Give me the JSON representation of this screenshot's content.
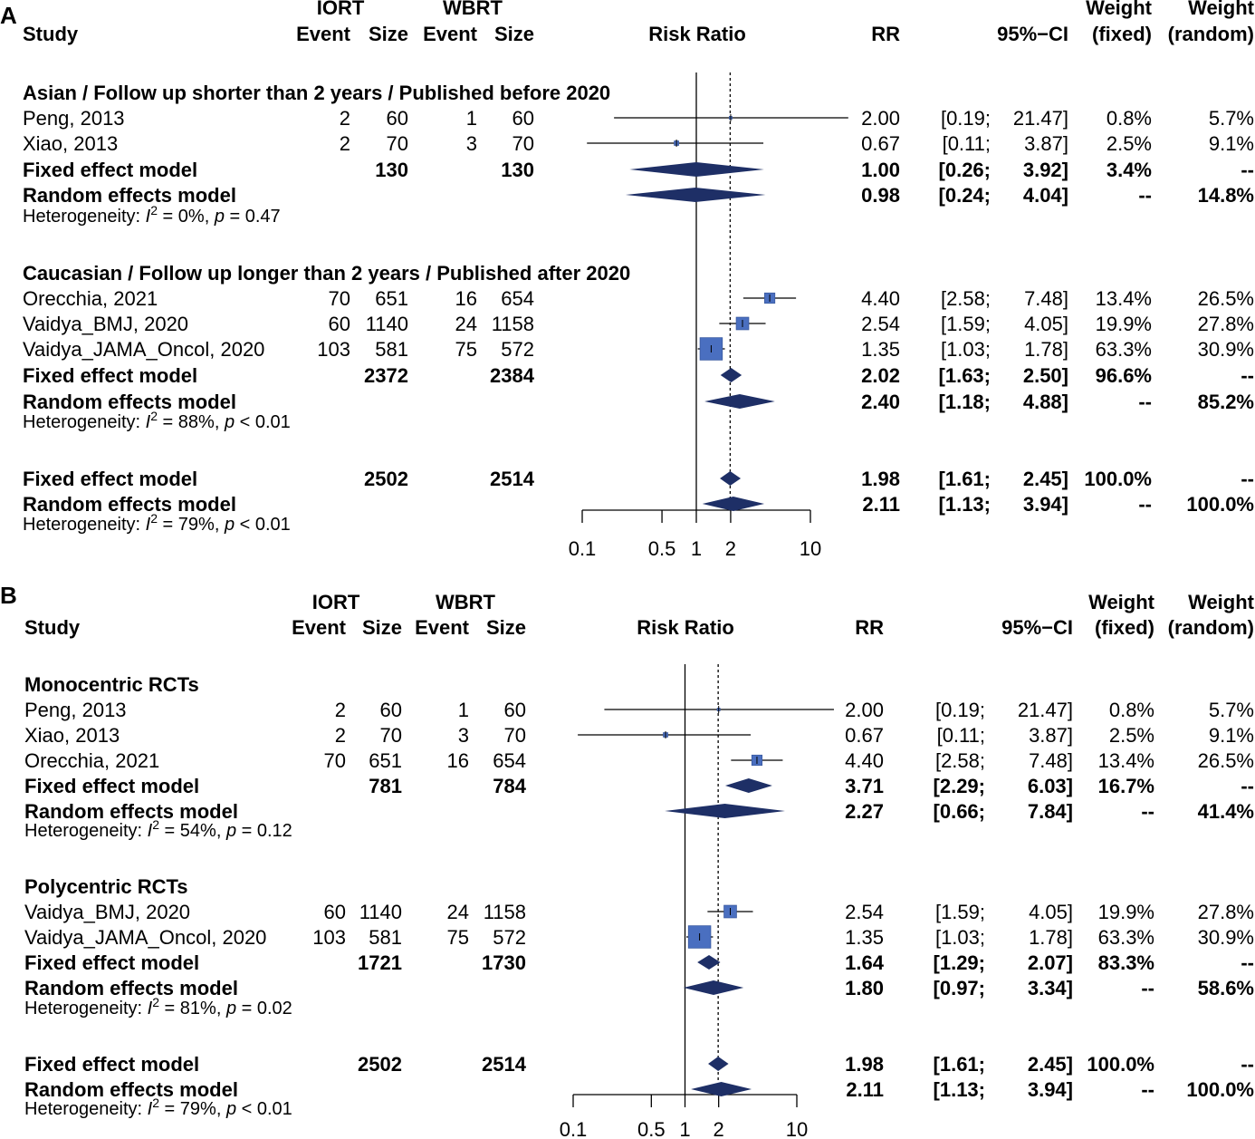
{
  "colors": {
    "square": "#4a6fc0",
    "square_stroke": "#3a5aa0",
    "diamond": "#1e2f66",
    "line": "#000000"
  },
  "chart_data": [
    {
      "type": "forest",
      "panel": "A",
      "headers": {
        "study": "Study",
        "iort": "IORT",
        "wbrt": "WBRT",
        "event": "Event",
        "size": "Size",
        "risk_ratio": "Risk Ratio",
        "rr": "RR",
        "ci": "95%−CI",
        "weight_fixed_1": "Weight",
        "weight_fixed_2": "(fixed)",
        "weight_random_1": "Weight",
        "weight_random_2": "(random)"
      },
      "axis": {
        "scale": "log",
        "ticks": [
          0.1,
          0.5,
          1,
          2,
          10
        ],
        "tick_labels": [
          "0.1",
          "0.5",
          "1",
          "2",
          "10"
        ],
        "xlim": [
          0.1,
          10
        ],
        "reference_line": 1,
        "summary_line": 1.98
      },
      "groups": [
        {
          "title": "Asian / Follow up shorter than 2 years / Published before 2020",
          "studies": [
            {
              "name": "Peng, 2013",
              "e1": "2",
              "n1": "60",
              "e2": "1",
              "n2": "60",
              "rr": 2.0,
              "lo": 0.19,
              "hi": 21.47,
              "rr_text": "2.00",
              "ci_lo": "[0.19;",
              "ci_hi": "21.47]",
              "wf": "0.8%",
              "wr": "5.7%",
              "w": 0.8
            },
            {
              "name": "Xiao, 2013",
              "e1": "2",
              "n1": "70",
              "e2": "3",
              "n2": "70",
              "rr": 0.67,
              "lo": 0.11,
              "hi": 3.87,
              "rr_text": "0.67",
              "ci_lo": "[0.11;",
              "ci_hi": "3.87]",
              "wf": "2.5%",
              "wr": "9.1%",
              "w": 2.5
            }
          ],
          "fixed": {
            "label": "Fixed effect model",
            "n1": "130",
            "n2": "130",
            "rr": 1.0,
            "lo": 0.26,
            "hi": 3.92,
            "rr_text": "1.00",
            "ci_lo": "[0.26;",
            "ci_hi": "3.92]",
            "wf": "3.4%",
            "wr": "--"
          },
          "random": {
            "label": "Random effects model",
            "rr": 0.98,
            "lo": 0.24,
            "hi": 4.04,
            "rr_text": "0.98",
            "ci_lo": "[0.24;",
            "ci_hi": "4.04]",
            "wf": "--",
            "wr": "14.8%"
          },
          "heterogeneity": {
            "prefix": "Heterogeneity: ",
            "i2": "I",
            "sup": "2",
            "value": " = 0%, ",
            "p": "p",
            "pval": " = 0.47"
          }
        },
        {
          "title": "Caucasian / Follow up longer than 2 years / Published after 2020",
          "studies": [
            {
              "name": "Orecchia, 2021",
              "e1": "70",
              "n1": "651",
              "e2": "16",
              "n2": "654",
              "rr": 4.4,
              "lo": 2.58,
              "hi": 7.48,
              "rr_text": "4.40",
              "ci_lo": "[2.58;",
              "ci_hi": "7.48]",
              "wf": "13.4%",
              "wr": "26.5%",
              "w": 13.4
            },
            {
              "name": "Vaidya_BMJ, 2020",
              "e1": "60",
              "n1": "1140",
              "e2": "24",
              "n2": "1158",
              "rr": 2.54,
              "lo": 1.59,
              "hi": 4.05,
              "rr_text": "2.54",
              "ci_lo": "[1.59;",
              "ci_hi": "4.05]",
              "wf": "19.9%",
              "wr": "27.8%",
              "w": 19.9
            },
            {
              "name": "Vaidya_JAMA_Oncol, 2020",
              "e1": "103",
              "n1": "581",
              "e2": "75",
              "n2": "572",
              "rr": 1.35,
              "lo": 1.03,
              "hi": 1.78,
              "rr_text": "1.35",
              "ci_lo": "[1.03;",
              "ci_hi": "1.78]",
              "wf": "63.3%",
              "wr": "30.9%",
              "w": 63.3
            }
          ],
          "fixed": {
            "label": "Fixed effect model",
            "n1": "2372",
            "n2": "2384",
            "rr": 2.02,
            "lo": 1.63,
            "hi": 2.5,
            "rr_text": "2.02",
            "ci_lo": "[1.63;",
            "ci_hi": "2.50]",
            "wf": "96.6%",
            "wr": "--"
          },
          "random": {
            "label": "Random effects model",
            "rr": 2.4,
            "lo": 1.18,
            "hi": 4.88,
            "rr_text": "2.40",
            "ci_lo": "[1.18;",
            "ci_hi": "4.88]",
            "wf": "--",
            "wr": "85.2%"
          },
          "heterogeneity": {
            "prefix": "Heterogeneity: ",
            "i2": "I",
            "sup": "2",
            "value": " = 88%, ",
            "p": "p",
            "pval": " < 0.01"
          }
        }
      ],
      "overall": {
        "fixed": {
          "label": "Fixed effect model",
          "n1": "2502",
          "n2": "2514",
          "rr": 1.98,
          "lo": 1.61,
          "hi": 2.45,
          "rr_text": "1.98",
          "ci_lo": "[1.61;",
          "ci_hi": "2.45]",
          "wf": "100.0%",
          "wr": "--"
        },
        "random": {
          "label": "Random effects model",
          "rr": 2.11,
          "lo": 1.13,
          "hi": 3.94,
          "rr_text": "2.11",
          "ci_lo": "[1.13;",
          "ci_hi": "3.94]",
          "wf": "--",
          "wr": "100.0%"
        },
        "heterogeneity": {
          "prefix": "Heterogeneity: ",
          "i2": "I",
          "sup": "2",
          "value": " = 79%, ",
          "p": "p",
          "pval": " < 0.01"
        }
      }
    },
    {
      "type": "forest",
      "panel": "B",
      "headers": {
        "study": "Study",
        "iort": "IORT",
        "wbrt": "WBRT",
        "event": "Event",
        "size": "Size",
        "risk_ratio": "Risk Ratio",
        "rr": "RR",
        "ci": "95%−CI",
        "weight_fixed_1": "Weight",
        "weight_fixed_2": "(fixed)",
        "weight_random_1": "Weight",
        "weight_random_2": "(random)"
      },
      "axis": {
        "scale": "log",
        "ticks": [
          0.1,
          0.5,
          1,
          2,
          10
        ],
        "tick_labels": [
          "0.1",
          "0.5",
          "1",
          "2",
          "10"
        ],
        "xlim": [
          0.1,
          10
        ],
        "reference_line": 1,
        "summary_line": 1.98
      },
      "groups": [
        {
          "title": "Monocentric RCTs",
          "studies": [
            {
              "name": "Peng, 2013",
              "e1": "2",
              "n1": "60",
              "e2": "1",
              "n2": "60",
              "rr": 2.0,
              "lo": 0.19,
              "hi": 21.47,
              "rr_text": "2.00",
              "ci_lo": "[0.19;",
              "ci_hi": "21.47]",
              "wf": "0.8%",
              "wr": "5.7%",
              "w": 0.8
            },
            {
              "name": "Xiao, 2013",
              "e1": "2",
              "n1": "70",
              "e2": "3",
              "n2": "70",
              "rr": 0.67,
              "lo": 0.11,
              "hi": 3.87,
              "rr_text": "0.67",
              "ci_lo": "[0.11;",
              "ci_hi": "3.87]",
              "wf": "2.5%",
              "wr": "9.1%",
              "w": 2.5
            },
            {
              "name": "Orecchia, 2021",
              "e1": "70",
              "n1": "651",
              "e2": "16",
              "n2": "654",
              "rr": 4.4,
              "lo": 2.58,
              "hi": 7.48,
              "rr_text": "4.40",
              "ci_lo": "[2.58;",
              "ci_hi": "7.48]",
              "wf": "13.4%",
              "wr": "26.5%",
              "w": 13.4
            }
          ],
          "fixed": {
            "label": "Fixed effect model",
            "n1": "781",
            "n2": "784",
            "rr": 3.71,
            "lo": 2.29,
            "hi": 6.03,
            "rr_text": "3.71",
            "ci_lo": "[2.29;",
            "ci_hi": "6.03]",
            "wf": "16.7%",
            "wr": "--"
          },
          "random": {
            "label": "Random effects model",
            "rr": 2.27,
            "lo": 0.66,
            "hi": 7.84,
            "rr_text": "2.27",
            "ci_lo": "[0.66;",
            "ci_hi": "7.84]",
            "wf": "--",
            "wr": "41.4%"
          },
          "heterogeneity": {
            "prefix": "Heterogeneity: ",
            "i2": "I",
            "sup": "2",
            "value": " = 54%, ",
            "p": "p",
            "pval": " = 0.12"
          }
        },
        {
          "title": "Polycentric RCTs",
          "studies": [
            {
              "name": "Vaidya_BMJ, 2020",
              "e1": "60",
              "n1": "1140",
              "e2": "24",
              "n2": "1158",
              "rr": 2.54,
              "lo": 1.59,
              "hi": 4.05,
              "rr_text": "2.54",
              "ci_lo": "[1.59;",
              "ci_hi": "4.05]",
              "wf": "19.9%",
              "wr": "27.8%",
              "w": 19.9
            },
            {
              "name": "Vaidya_JAMA_Oncol, 2020",
              "e1": "103",
              "n1": "581",
              "e2": "75",
              "n2": "572",
              "rr": 1.35,
              "lo": 1.03,
              "hi": 1.78,
              "rr_text": "1.35",
              "ci_lo": "[1.03;",
              "ci_hi": "1.78]",
              "wf": "63.3%",
              "wr": "30.9%",
              "w": 63.3
            }
          ],
          "fixed": {
            "label": "Fixed effect model",
            "n1": "1721",
            "n2": "1730",
            "rr": 1.64,
            "lo": 1.29,
            "hi": 2.07,
            "rr_text": "1.64",
            "ci_lo": "[1.29;",
            "ci_hi": "2.07]",
            "wf": "83.3%",
            "wr": "--"
          },
          "random": {
            "label": "Random effects model",
            "rr": 1.8,
            "lo": 0.97,
            "hi": 3.34,
            "rr_text": "1.80",
            "ci_lo": "[0.97;",
            "ci_hi": "3.34]",
            "wf": "--",
            "wr": "58.6%"
          },
          "heterogeneity": {
            "prefix": "Heterogeneity: ",
            "i2": "I",
            "sup": "2",
            "value": " = 81%, ",
            "p": "p",
            "pval": " = 0.02"
          }
        }
      ],
      "overall": {
        "fixed": {
          "label": "Fixed effect model",
          "n1": "2502",
          "n2": "2514",
          "rr": 1.98,
          "lo": 1.61,
          "hi": 2.45,
          "rr_text": "1.98",
          "ci_lo": "[1.61;",
          "ci_hi": "2.45]",
          "wf": "100.0%",
          "wr": "--"
        },
        "random": {
          "label": "Random effects model",
          "rr": 2.11,
          "lo": 1.13,
          "hi": 3.94,
          "rr_text": "2.11",
          "ci_lo": "[1.13;",
          "ci_hi": "3.94]",
          "wf": "--",
          "wr": "100.0%"
        },
        "heterogeneity": {
          "prefix": "Heterogeneity: ",
          "i2": "I",
          "sup": "2",
          "value": " = 79%, ",
          "p": "p",
          "pval": " < 0.01"
        }
      }
    }
  ]
}
